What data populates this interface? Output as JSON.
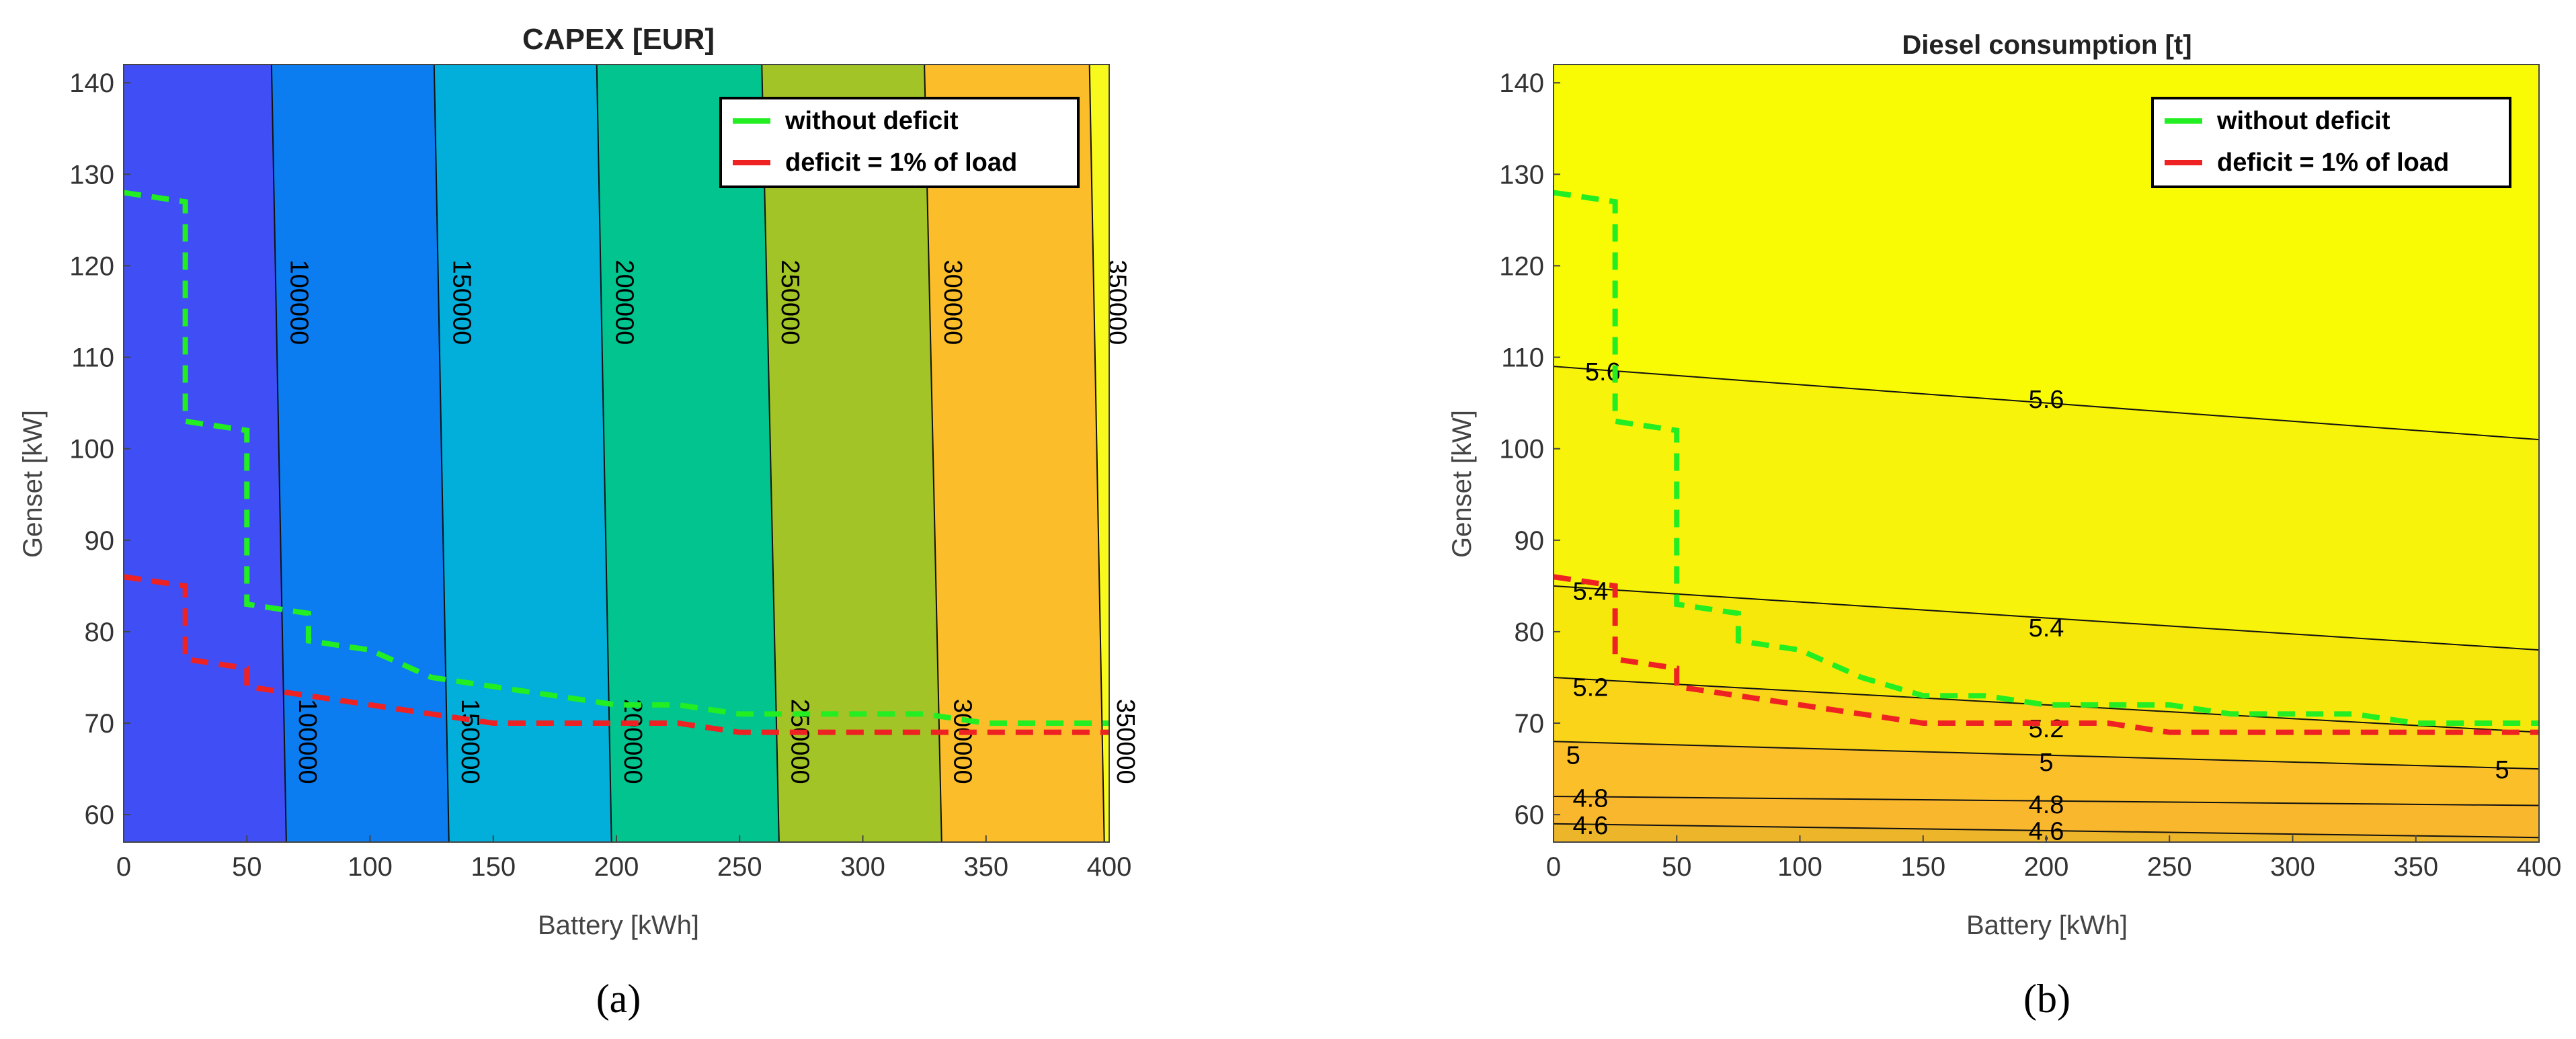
{
  "chart_data": [
    {
      "type": "contour",
      "panel_label": "(a)",
      "title": "CAPEX [EUR]",
      "xlabel": "Battery [kWh]",
      "ylabel": "Genset [kW]",
      "xlim": [
        0,
        400
      ],
      "ylim": [
        57,
        142
      ],
      "xticks": [
        "0",
        "50",
        "100",
        "150",
        "200",
        "250",
        "300",
        "350",
        "400"
      ],
      "yticks": [
        "60",
        "70",
        "80",
        "90",
        "100",
        "110",
        "120",
        "130",
        "140"
      ],
      "fills": [
        {
          "from": 0,
          "top_x": 0,
          "bottom_x": 0,
          "color": "#3f4ff5"
        },
        {
          "level": 100000,
          "top_x": 60,
          "bottom_x": 66,
          "color": "#0c7df1"
        },
        {
          "level": 150000,
          "top_x": 126,
          "bottom_x": 132,
          "color": "#01afda"
        },
        {
          "level": 200000,
          "top_x": 192,
          "bottom_x": 198,
          "color": "#01c48f"
        },
        {
          "level": 250000,
          "top_x": 259,
          "bottom_x": 266,
          "color": "#a2c426"
        },
        {
          "level": 300000,
          "top_x": 325,
          "bottom_x": 332,
          "color": "#fbbd29"
        },
        {
          "level": 350000,
          "top_x": 392,
          "bottom_x": 398,
          "color": "#f8f91c"
        }
      ],
      "contour_levels": [
        "100000",
        "150000",
        "200000",
        "250000",
        "300000",
        "350000"
      ],
      "series": [
        {
          "name": "without deficit",
          "color": "#22ee22",
          "style": "dashed",
          "x": [
            0,
            25,
            25,
            50,
            50,
            75,
            75,
            100,
            125,
            150,
            175,
            200,
            225,
            250,
            275,
            300,
            325,
            350,
            375,
            400
          ],
          "y": [
            128,
            127,
            103,
            102,
            83,
            82,
            79,
            78,
            75,
            74,
            73,
            72,
            72,
            71,
            71,
            71,
            71,
            70,
            70,
            70
          ]
        },
        {
          "name": "deficit = 1% of load",
          "color": "#ee2222",
          "style": "dashed",
          "x": [
            0,
            25,
            25,
            50,
            50,
            75,
            100,
            125,
            150,
            175,
            200,
            225,
            250,
            275,
            300,
            325,
            350,
            375,
            400
          ],
          "y": [
            86,
            85,
            77,
            76,
            74,
            73,
            72,
            71,
            70,
            70,
            70,
            70,
            69,
            69,
            69,
            69,
            69,
            69,
            69
          ]
        }
      ]
    },
    {
      "type": "contour",
      "panel_label": "(b)",
      "title": "Diesel consumption [t]",
      "xlabel": "Battery [kWh]",
      "ylabel": "Genset [kW]",
      "xlim": [
        0,
        400
      ],
      "ylim": [
        57,
        142
      ],
      "xticks": [
        "0",
        "50",
        "100",
        "150",
        "200",
        "250",
        "300",
        "350",
        "400"
      ],
      "yticks": [
        "60",
        "70",
        "80",
        "90",
        "100",
        "110",
        "120",
        "130",
        "140"
      ],
      "fills": [
        {
          "level": 5.6,
          "color": "#f7f30a",
          "y_at_0": 109,
          "y_at_400": 101
        },
        {
          "level": 5.4,
          "color": "#f7e80c",
          "y_at_0": 85,
          "y_at_400": 78
        },
        {
          "level": 5.2,
          "color": "#f9d419",
          "y_at_0": 75,
          "y_at_400": 69
        },
        {
          "level": 5,
          "color": "#fbbf2a",
          "y_at_0": 68,
          "y_at_400": 65
        },
        {
          "level": 4.8,
          "color": "#f9b72d",
          "y_at_0": 62,
          "y_at_400": 61
        },
        {
          "level": 4.6,
          "color": "#edb52a",
          "y_at_0": 59,
          "y_at_400": 57.5
        }
      ],
      "contour_labels": [
        "5.6",
        "5.6",
        "5.4",
        "5.4",
        "5.2",
        "5.2",
        "5",
        "5",
        "5",
        "4.8",
        "4.8",
        "4.6",
        "4.6"
      ],
      "series": [
        {
          "name": "without deficit",
          "color": "#22ee22",
          "style": "dashed",
          "x": [
            0,
            25,
            25,
            50,
            50,
            75,
            75,
            100,
            125,
            150,
            175,
            200,
            225,
            250,
            275,
            300,
            325,
            350,
            375,
            400
          ],
          "y": [
            128,
            127,
            103,
            102,
            83,
            82,
            79,
            78,
            75,
            73,
            73,
            72,
            72,
            72,
            71,
            71,
            71,
            70,
            70,
            70
          ]
        },
        {
          "name": "deficit = 1% of load",
          "color": "#ee2222",
          "style": "dashed",
          "x": [
            0,
            25,
            25,
            50,
            50,
            75,
            100,
            125,
            150,
            175,
            200,
            225,
            250,
            275,
            300,
            325,
            350,
            375,
            400
          ],
          "y": [
            86,
            85,
            77,
            76,
            74,
            73,
            72,
            71,
            70,
            70,
            70,
            70,
            69,
            69,
            69,
            69,
            69,
            69,
            69
          ]
        }
      ]
    }
  ]
}
